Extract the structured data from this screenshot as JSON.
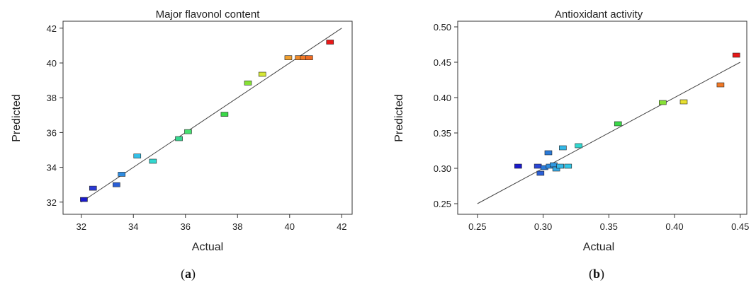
{
  "chart_data": [
    {
      "type": "scatter",
      "panel": "a",
      "title": "Major flavonol content",
      "xlabel": "Actual",
      "ylabel": "Predicted",
      "xlim": [
        31.3,
        42.4
      ],
      "ylim": [
        31.3,
        42.4
      ],
      "xticks": [
        32,
        34,
        36,
        38,
        40,
        42
      ],
      "yticks": [
        32,
        34,
        36,
        38,
        40,
        42
      ],
      "fit_line": [
        [
          32,
          32
        ],
        [
          42,
          42
        ]
      ],
      "points": [
        {
          "x": 32.1,
          "y": 32.15,
          "color": "#1a1acc"
        },
        {
          "x": 32.45,
          "y": 32.8,
          "color": "#2a3ad6"
        },
        {
          "x": 33.35,
          "y": 33.0,
          "color": "#2a5fd6"
        },
        {
          "x": 33.55,
          "y": 33.6,
          "color": "#2f8ce0"
        },
        {
          "x": 34.15,
          "y": 34.65,
          "color": "#33c0e8"
        },
        {
          "x": 34.75,
          "y": 34.35,
          "color": "#33d8d0"
        },
        {
          "x": 35.75,
          "y": 35.65,
          "color": "#36d890"
        },
        {
          "x": 36.1,
          "y": 36.05,
          "color": "#46e070"
        },
        {
          "x": 37.5,
          "y": 37.05,
          "color": "#3ad848"
        },
        {
          "x": 38.4,
          "y": 38.85,
          "color": "#86e036"
        },
        {
          "x": 38.95,
          "y": 39.35,
          "color": "#d6e836"
        },
        {
          "x": 39.95,
          "y": 40.3,
          "color": "#f0a030"
        },
        {
          "x": 40.35,
          "y": 40.3,
          "color": "#f08a28"
        },
        {
          "x": 40.55,
          "y": 40.3,
          "color": "#f07826"
        },
        {
          "x": 40.75,
          "y": 40.3,
          "color": "#ee6a22"
        },
        {
          "x": 41.55,
          "y": 41.2,
          "color": "#e81818"
        }
      ],
      "panel_label": "a"
    },
    {
      "type": "scatter",
      "panel": "b",
      "title": "Antioxidant activity",
      "xlabel": "Actual",
      "ylabel": "Predicted",
      "xlim": [
        0.235,
        0.455
      ],
      "ylim": [
        0.235,
        0.508
      ],
      "xticks": [
        "0.25",
        "0.30",
        "0.35",
        "0.40",
        "0.45"
      ],
      "yticks": [
        "0.25",
        "0.30",
        "0.35",
        "0.40",
        "0.45",
        "0.50"
      ],
      "fit_line": [
        [
          0.25,
          0.25
        ],
        [
          0.45,
          0.45
        ]
      ],
      "points": [
        {
          "x": 0.281,
          "y": 0.303,
          "color": "#1a1acc"
        },
        {
          "x": 0.296,
          "y": 0.303,
          "color": "#2a46d6"
        },
        {
          "x": 0.298,
          "y": 0.293,
          "color": "#2a5fd6"
        },
        {
          "x": 0.301,
          "y": 0.301,
          "color": "#2a7ad8"
        },
        {
          "x": 0.304,
          "y": 0.322,
          "color": "#2a7ad8"
        },
        {
          "x": 0.305,
          "y": 0.303,
          "color": "#2f8ce0"
        },
        {
          "x": 0.308,
          "y": 0.305,
          "color": "#3098e0"
        },
        {
          "x": 0.31,
          "y": 0.299,
          "color": "#33a8e4"
        },
        {
          "x": 0.313,
          "y": 0.303,
          "color": "#33b8e8"
        },
        {
          "x": 0.315,
          "y": 0.329,
          "color": "#33b8e8"
        },
        {
          "x": 0.319,
          "y": 0.303,
          "color": "#33c8e8"
        },
        {
          "x": 0.327,
          "y": 0.332,
          "color": "#33d8d0"
        },
        {
          "x": 0.357,
          "y": 0.363,
          "color": "#3ad848"
        },
        {
          "x": 0.391,
          "y": 0.393,
          "color": "#86e036"
        },
        {
          "x": 0.407,
          "y": 0.394,
          "color": "#e8e030"
        },
        {
          "x": 0.435,
          "y": 0.418,
          "color": "#f07826"
        },
        {
          "x": 0.447,
          "y": 0.46,
          "color": "#e81818"
        }
      ],
      "panel_label": "b"
    }
  ]
}
